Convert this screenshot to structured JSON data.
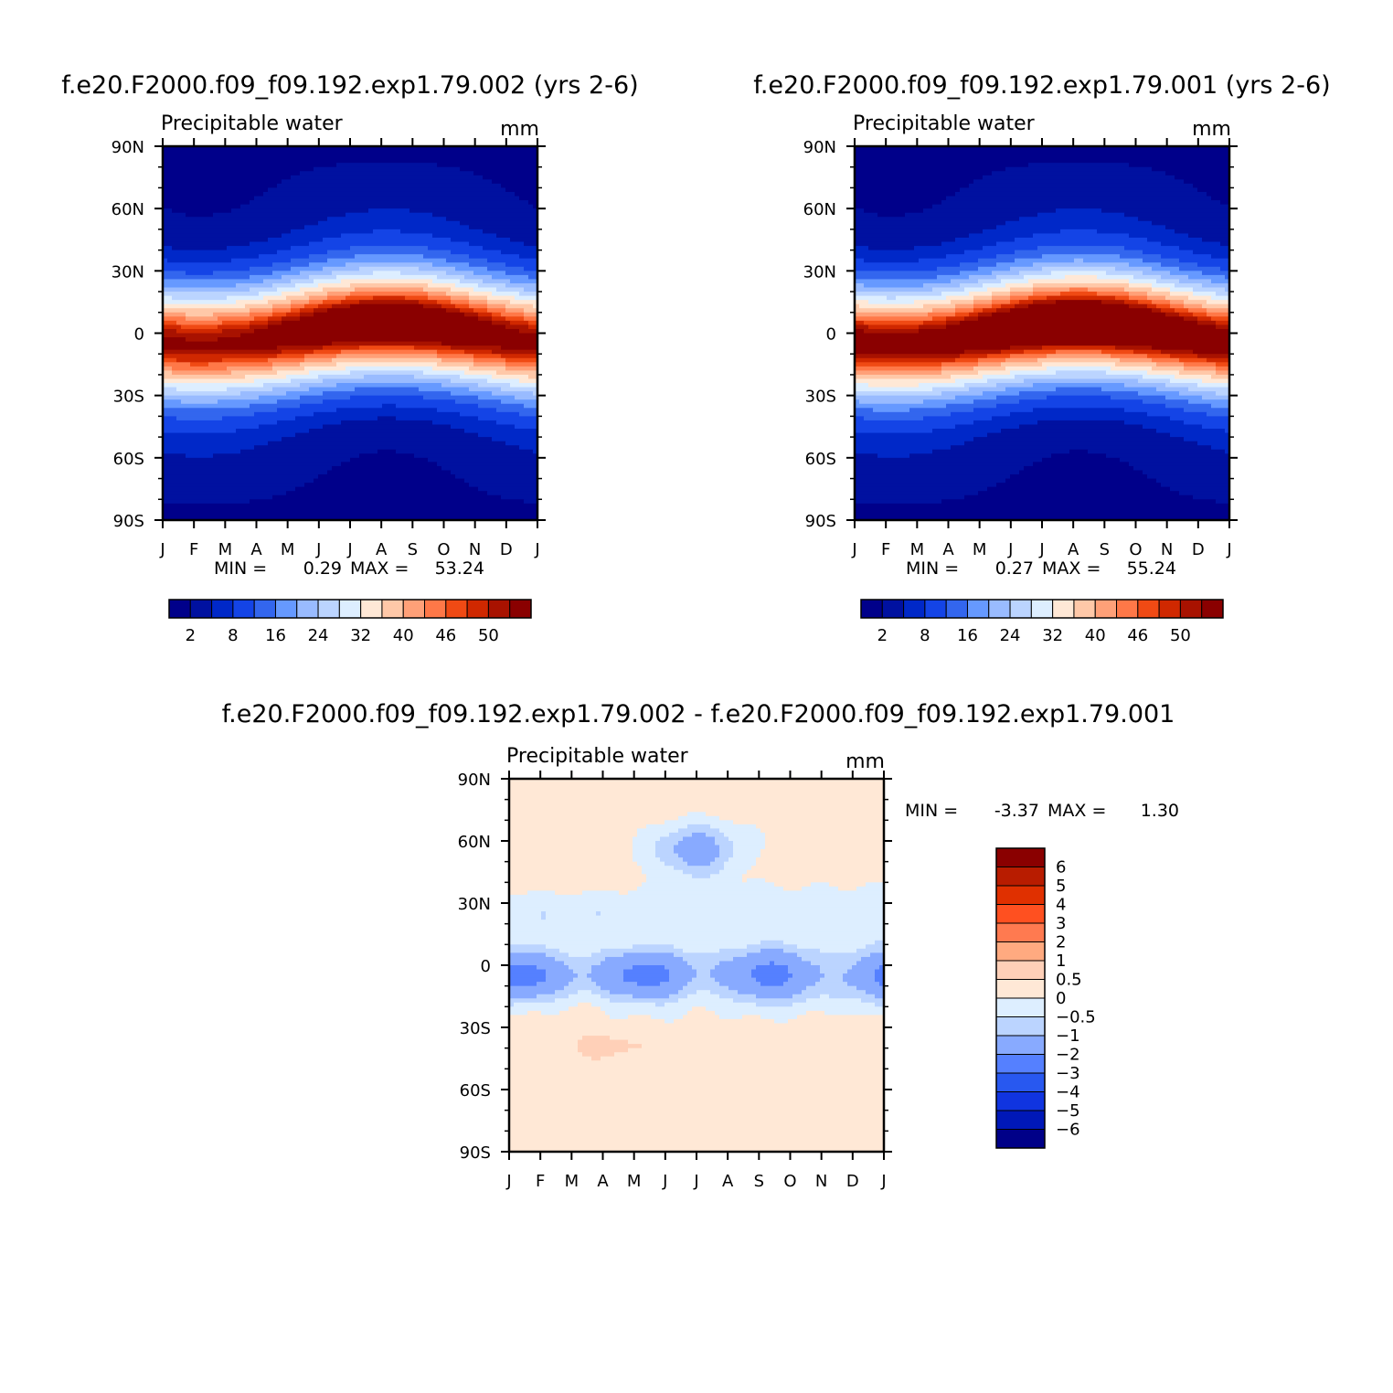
{
  "panels": [
    {
      "id": "exp-002",
      "title": "f.e20.F2000.f09_f09.192.exp1.79.002 (yrs 2-6)",
      "variable": "Precipitable water",
      "units": "mm",
      "stats": {
        "min_label": "MIN =",
        "min": "0.29",
        "max_label": "MAX =",
        "max": "53.24"
      }
    },
    {
      "id": "exp-001",
      "title": "f.e20.F2000.f09_f09.192.exp1.79.001 (yrs 2-6)",
      "variable": "Precipitable water",
      "units": "mm",
      "stats": {
        "min_label": "MIN =",
        "min": "0.27",
        "max_label": "MAX =",
        "max": "55.24"
      }
    },
    {
      "id": "difference",
      "title": "f.e20.F2000.f09_f09.192.exp1.79.002 - f.e20.F2000.f09_f09.192.exp1.79.001",
      "variable": "Precipitable water",
      "units": "mm",
      "stats": {
        "min_label": "MIN =",
        "min": "-3.37",
        "max_label": "MAX =",
        "max": "1.30"
      }
    }
  ],
  "chart_data": [
    {
      "type": "heatmap",
      "title": "f.e20.F2000.f09_f09.192.exp1.79.002 (yrs 2-6)",
      "subtitle": "Precipitable water",
      "units": "mm",
      "x": [
        "J",
        "F",
        "M",
        "A",
        "M",
        "J",
        "J",
        "A",
        "S",
        "O",
        "N",
        "D",
        "J"
      ],
      "y_ticks": [
        "90N",
        "60N",
        "30N",
        "0",
        "30S",
        "60S",
        "90S"
      ],
      "ylim": [
        -90,
        90
      ],
      "levels_labeled": [
        2,
        8,
        16,
        24,
        32,
        40,
        46,
        50
      ],
      "min": 0.29,
      "max": 53.24,
      "colors": [
        "#00008a",
        "#0011a0",
        "#0028c8",
        "#1444e6",
        "#3366ee",
        "#6699ff",
        "#99bbff",
        "#bbd4ff",
        "#ddeeff",
        "#ffe8d6",
        "#ffc8a8",
        "#ffa078",
        "#ff7848",
        "#f04a14",
        "#d02800",
        "#a81200",
        "#8a0000"
      ],
      "legend": "bottom"
    },
    {
      "type": "heatmap",
      "title": "f.e20.F2000.f09_f09.192.exp1.79.001 (yrs 2-6)",
      "subtitle": "Precipitable water",
      "units": "mm",
      "x": [
        "J",
        "F",
        "M",
        "A",
        "M",
        "J",
        "J",
        "A",
        "S",
        "O",
        "N",
        "D",
        "J"
      ],
      "y_ticks": [
        "90N",
        "60N",
        "30N",
        "0",
        "30S",
        "60S",
        "90S"
      ],
      "ylim": [
        -90,
        90
      ],
      "levels_labeled": [
        2,
        8,
        16,
        24,
        32,
        40,
        46,
        50
      ],
      "min": 0.27,
      "max": 55.24,
      "colors": [
        "#00008a",
        "#0011a0",
        "#0028c8",
        "#1444e6",
        "#3366ee",
        "#6699ff",
        "#99bbff",
        "#bbd4ff",
        "#ddeeff",
        "#ffe8d6",
        "#ffc8a8",
        "#ffa078",
        "#ff7848",
        "#f04a14",
        "#d02800",
        "#a81200",
        "#8a0000"
      ],
      "legend": "bottom"
    },
    {
      "type": "heatmap",
      "title": "f.e20.F2000.f09_f09.192.exp1.79.002 - f.e20.F2000.f09_f09.192.exp1.79.001",
      "subtitle": "Precipitable water",
      "units": "mm",
      "x": [
        "J",
        "F",
        "M",
        "A",
        "M",
        "J",
        "J",
        "A",
        "S",
        "O",
        "N",
        "D",
        "J"
      ],
      "y_ticks": [
        "90N",
        "60N",
        "30N",
        "0",
        "30S",
        "60S",
        "90S"
      ],
      "ylim": [
        -90,
        90
      ],
      "levels": [
        "6",
        "5",
        "4",
        "3",
        "2",
        "1",
        "0.5",
        "0",
        "-0.5",
        "-1",
        "-2",
        "-3",
        "-4",
        "-5",
        "-6"
      ],
      "min": -3.37,
      "max": 1.3,
      "colors": [
        "#8a0000",
        "#b81c00",
        "#e03000",
        "#ff5020",
        "#ff7a50",
        "#ffaa80",
        "#ffd0b8",
        "#ffe8d6",
        "#ddeeff",
        "#bbd4ff",
        "#88aaff",
        "#5580ff",
        "#2858f0",
        "#1034e0",
        "#0018b8",
        "#000088"
      ],
      "legend": "right"
    }
  ]
}
